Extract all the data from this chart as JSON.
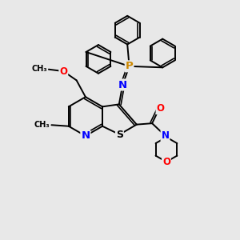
{
  "background_color": "#e8e8e8",
  "bond_color": "#000000",
  "atom_colors": {
    "N": "#0000ff",
    "O": "#ff0000",
    "S": "#000000",
    "P": "#cc8800",
    "C": "#000000"
  },
  "line_width": 1.4,
  "font_size": 8.5,
  "figsize": [
    3.0,
    3.0
  ],
  "dpi": 100
}
